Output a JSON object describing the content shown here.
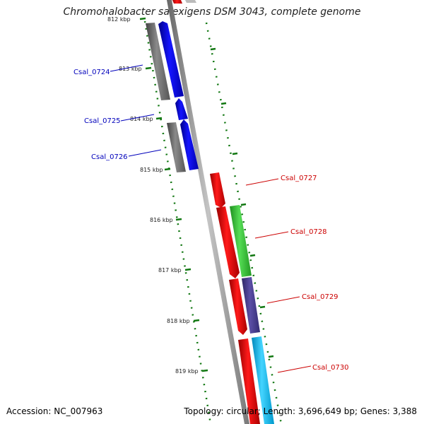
{
  "title": "Chromohalobacter salexigens DSM 3043, complete genome",
  "footer": {
    "accession": "Accession: NC_007963",
    "summary": "Topology: circular; Length: 3,696,649 bp; Genes: 3,388"
  },
  "ruler": {
    "labels": [
      "812 kbp",
      "813 kbp",
      "814 kbp",
      "815 kbp",
      "816 kbp",
      "817 kbp",
      "818 kbp",
      "819 kbp"
    ]
  },
  "genes": [
    {
      "id": "Csal_0724",
      "strand": "reverse",
      "color": "#0000dd"
    },
    {
      "id": "Csal_0725",
      "strand": "reverse",
      "color": "#0000dd"
    },
    {
      "id": "Csal_0726",
      "strand": "reverse",
      "color": "#0000dd"
    },
    {
      "id": "Csal_0727",
      "strand": "forward",
      "color": "#dd0000"
    },
    {
      "id": "Csal_0728",
      "strand": "forward",
      "color": "#dd0000"
    },
    {
      "id": "Csal_0729",
      "strand": "forward",
      "color": "#dd0000"
    },
    {
      "id": "Csal_0730",
      "strand": "forward",
      "color": "#dd0000"
    }
  ],
  "colors": {
    "reverse_cds": "#0000ee",
    "forward_cds": "#ee0000",
    "gene_track": "#6b6b6b",
    "backbone": "#9a9a9a",
    "ruler": "#117711",
    "cog_green": "#33bb33",
    "cog_purple": "#4b3f8f",
    "cog_cyan": "#22bbee"
  }
}
